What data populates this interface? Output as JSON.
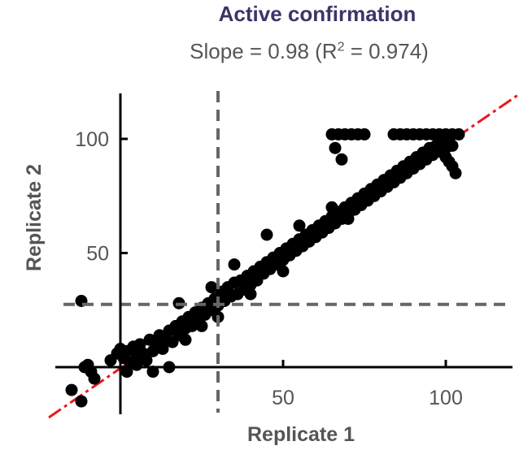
{
  "chart_data": {
    "type": "scatter",
    "title": "Active confirmation",
    "subtitle": {
      "prefix": "Slope = 0.98 (R",
      "superscript": "2",
      "suffix": " = 0.974)"
    },
    "xlabel": "Replicate 1",
    "ylabel": "Replicate 2",
    "xlim": [
      -28,
      128
    ],
    "ylim": [
      -22,
      120
    ],
    "x_ticks": [
      50,
      100
    ],
    "y_ticks": [
      50,
      100
    ],
    "grid": false,
    "threshold_lines": {
      "x": 30,
      "y": 27.5,
      "color": "#666666",
      "style": "dashed"
    },
    "fit_line": {
      "slope": 0.98,
      "intercept": -0.5,
      "x_range": [
        -22,
        127
      ],
      "color": "#e8191c",
      "style": "dash-dot"
    },
    "point_color": "#000000",
    "points": [
      [
        -15,
        -10
      ],
      [
        -12,
        -15
      ],
      [
        -11,
        0
      ],
      [
        -9,
        -2
      ],
      [
        -10,
        1
      ],
      [
        -8,
        -5
      ],
      [
        -12,
        29
      ],
      [
        -3,
        3
      ],
      [
        -1,
        6
      ],
      [
        0,
        8
      ],
      [
        1,
        4
      ],
      [
        2,
        7
      ],
      [
        3,
        2
      ],
      [
        4,
        9
      ],
      [
        5,
        5
      ],
      [
        5,
        1
      ],
      [
        6,
        10
      ],
      [
        7,
        6
      ],
      [
        8,
        3
      ],
      [
        9,
        12
      ],
      [
        10,
        7
      ],
      [
        10,
        -2
      ],
      [
        11,
        10
      ],
      [
        12,
        14
      ],
      [
        13,
        8
      ],
      [
        14,
        12
      ],
      [
        15,
        16
      ],
      [
        16,
        11
      ],
      [
        17,
        18
      ],
      [
        18,
        14
      ],
      [
        19,
        20
      ],
      [
        20,
        17
      ],
      [
        21,
        22
      ],
      [
        22,
        18
      ],
      [
        23,
        24
      ],
      [
        24,
        21
      ],
      [
        25,
        26
      ],
      [
        26,
        23
      ],
      [
        27,
        28
      ],
      [
        28,
        25
      ],
      [
        29,
        30
      ],
      [
        30,
        27
      ],
      [
        18,
        28
      ],
      [
        2,
        -2
      ],
      [
        15,
        0
      ],
      [
        20,
        12
      ],
      [
        28,
        35
      ],
      [
        31,
        33
      ],
      [
        32,
        29
      ],
      [
        33,
        35
      ],
      [
        34,
        31
      ],
      [
        35,
        37
      ],
      [
        36,
        32
      ],
      [
        37,
        38
      ],
      [
        38,
        34
      ],
      [
        39,
        40
      ],
      [
        40,
        36
      ],
      [
        41,
        42
      ],
      [
        42,
        38
      ],
      [
        43,
        44
      ],
      [
        44,
        41
      ],
      [
        45,
        46
      ],
      [
        46,
        43
      ],
      [
        47,
        48
      ],
      [
        48,
        45
      ],
      [
        49,
        50
      ],
      [
        50,
        47
      ],
      [
        51,
        52
      ],
      [
        52,
        49
      ],
      [
        53,
        54
      ],
      [
        54,
        51
      ],
      [
        55,
        56
      ],
      [
        56,
        53
      ],
      [
        57,
        58
      ],
      [
        58,
        55
      ],
      [
        59,
        60
      ],
      [
        60,
        57
      ],
      [
        61,
        62
      ],
      [
        62,
        59
      ],
      [
        63,
        64
      ],
      [
        64,
        61
      ],
      [
        65,
        66
      ],
      [
        66,
        63
      ],
      [
        67,
        68
      ],
      [
        68,
        65
      ],
      [
        69,
        70
      ],
      [
        70,
        67
      ],
      [
        71,
        72
      ],
      [
        72,
        69
      ],
      [
        73,
        74
      ],
      [
        74,
        71
      ],
      [
        75,
        76
      ],
      [
        76,
        73
      ],
      [
        77,
        78
      ],
      [
        78,
        75
      ],
      [
        79,
        80
      ],
      [
        80,
        77
      ],
      [
        81,
        82
      ],
      [
        82,
        79
      ],
      [
        83,
        84
      ],
      [
        84,
        81
      ],
      [
        85,
        86
      ],
      [
        86,
        83
      ],
      [
        87,
        88
      ],
      [
        88,
        85
      ],
      [
        89,
        90
      ],
      [
        90,
        87
      ],
      [
        91,
        92
      ],
      [
        92,
        89
      ],
      [
        93,
        94
      ],
      [
        94,
        91
      ],
      [
        95,
        96
      ],
      [
        96,
        93
      ],
      [
        97,
        97
      ],
      [
        98,
        95
      ],
      [
        99,
        98
      ],
      [
        100,
        96
      ],
      [
        101,
        99
      ],
      [
        102,
        97
      ],
      [
        100,
        92
      ],
      [
        102,
        88
      ],
      [
        103,
        85
      ],
      [
        101,
        90
      ],
      [
        99,
        94
      ],
      [
        55,
        62
      ],
      [
        60,
        58
      ],
      [
        65,
        70
      ],
      [
        70,
        65
      ],
      [
        45,
        58
      ],
      [
        50,
        42
      ],
      [
        35,
        45
      ],
      [
        30,
        22
      ],
      [
        25,
        18
      ],
      [
        40,
        32
      ],
      [
        65,
        102
      ],
      [
        67,
        102
      ],
      [
        69,
        102
      ],
      [
        71,
        102
      ],
      [
        73,
        102
      ],
      [
        75,
        102
      ],
      [
        84,
        102
      ],
      [
        86,
        102
      ],
      [
        88,
        102
      ],
      [
        90,
        102
      ],
      [
        92,
        102
      ],
      [
        94,
        102
      ],
      [
        96,
        102
      ],
      [
        98,
        102
      ],
      [
        100,
        102
      ],
      [
        102,
        102
      ],
      [
        104,
        102
      ],
      [
        68,
        91
      ],
      [
        66,
        96
      ]
    ]
  }
}
